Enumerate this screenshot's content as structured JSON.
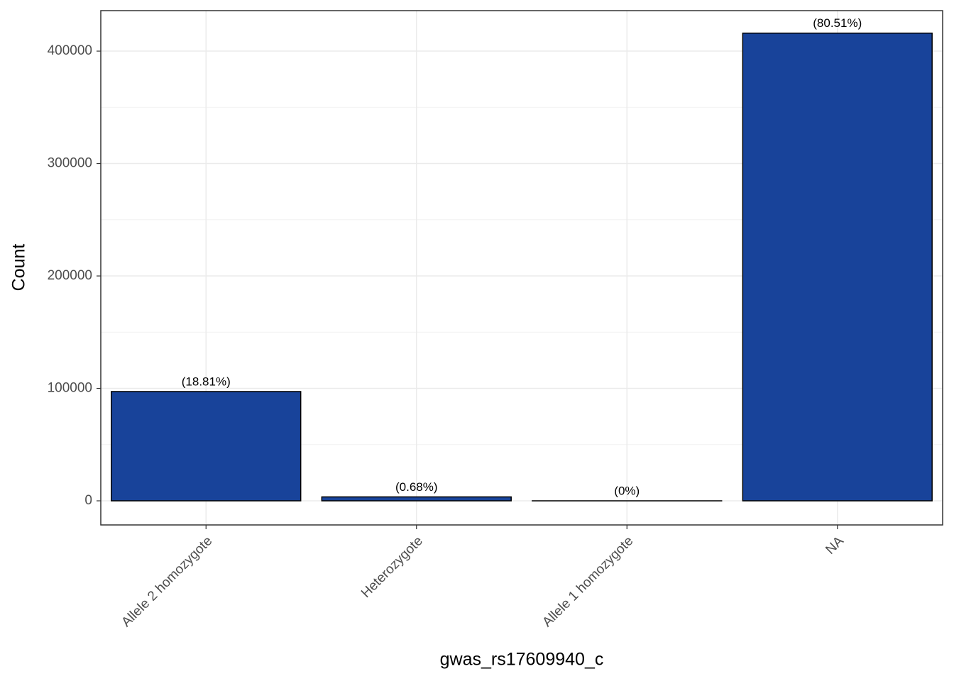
{
  "chart_data": {
    "type": "bar",
    "x_label": "gwas_rs17609940_c",
    "y_label": "Count",
    "categories": [
      "Allele 2 homozygote",
      "Heterozygote",
      "Allele 1 homozygote",
      "NA"
    ],
    "values": [
      97200,
      3500,
      0,
      416000
    ],
    "bar_labels": [
      "(18.81%)",
      "(0.68%)",
      "(0%)",
      "(80.51%)"
    ],
    "color": "#18439a",
    "ylim": [
      -21450,
      436000
    ],
    "yticks": [
      0,
      100000,
      200000,
      300000,
      400000
    ],
    "minor_yticks": [
      50000,
      150000,
      250000,
      350000
    ],
    "grid": true
  }
}
